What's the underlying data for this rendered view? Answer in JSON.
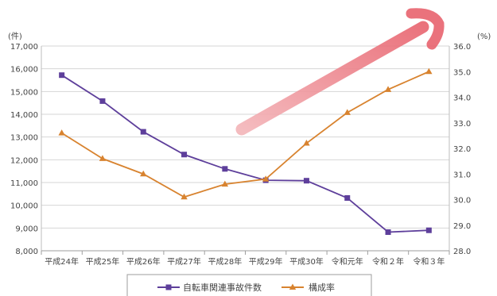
{
  "chart_data": {
    "type": "line",
    "categories": [
      "平成24年",
      "平成25年",
      "平成26年",
      "平成27年",
      "平成28年",
      "平成29年",
      "平成30年",
      "令和元年",
      "令和２年",
      "令和３年"
    ],
    "series": [
      {
        "name": "自転車関連事故件数",
        "axis": "left",
        "color": "#5e3f9b",
        "marker": "square",
        "values": [
          15720,
          14580,
          13230,
          12230,
          11600,
          11100,
          11080,
          10320,
          8820,
          8900
        ]
      },
      {
        "name": "構成率",
        "axis": "right",
        "color": "#d8832f",
        "marker": "triangle",
        "values": [
          32.6,
          31.6,
          31.0,
          30.1,
          30.6,
          30.8,
          32.2,
          33.4,
          34.3,
          35.0
        ]
      }
    ],
    "y_left": {
      "unit": "(件)",
      "min": 8000,
      "max": 17000,
      "ticks": [
        "8,000",
        "9,000",
        "10,000",
        "11,000",
        "12,000",
        "13,000",
        "14,000",
        "15,000",
        "16,000",
        "17,000"
      ]
    },
    "y_right": {
      "unit": "(%)",
      "min": 28.0,
      "max": 36.0,
      "ticks": [
        "28.0",
        "29.0",
        "30.0",
        "31.0",
        "32.0",
        "33.0",
        "34.0",
        "35.0",
        "36.0"
      ]
    },
    "grid": true,
    "legend_placement": "bottom",
    "annotation": {
      "type": "arrow",
      "direction": "up-right",
      "color": "#e8636e"
    }
  }
}
